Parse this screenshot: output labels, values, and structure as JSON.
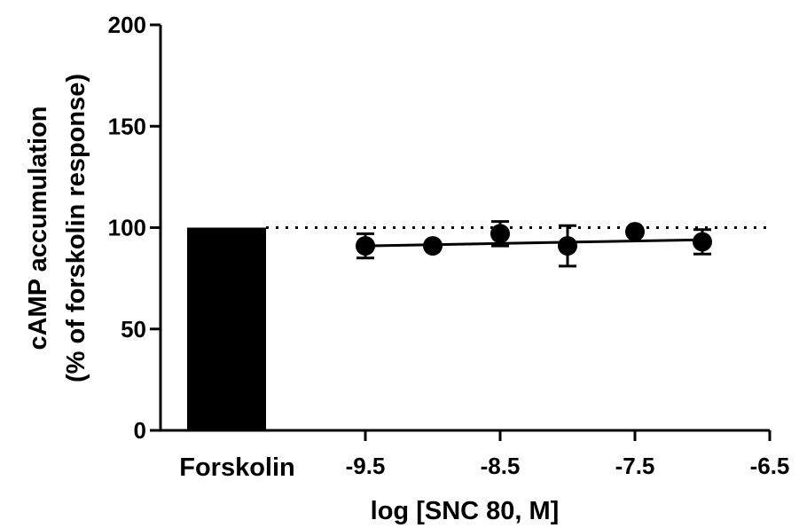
{
  "chart_data": {
    "type": "scatter",
    "xlabel": "log [SNC 80, M]",
    "ylabel_line1": "cAMP accumulation",
    "ylabel_line2": "(% of forskolin response)",
    "ylim": [
      0,
      200
    ],
    "y_ticks": [
      0,
      50,
      100,
      150,
      200
    ],
    "y_tick_labels": [
      "0",
      "50",
      "100",
      "150",
      "200"
    ],
    "xlim": [
      -10.0,
      -6.5
    ],
    "x_ticks": [
      -9.5,
      -8.5,
      -7.5,
      -6.5
    ],
    "x_tick_labels": [
      "-9.5",
      "-8.5",
      "-7.5",
      "-6.5"
    ],
    "control_bar": {
      "label": "Forskolin",
      "value": 100
    },
    "reference_line": 100,
    "series": [
      {
        "x": [
          -9.5,
          -9.0,
          -8.5,
          -8.0,
          -7.5,
          -7.0
        ],
        "y": [
          91,
          91,
          97,
          91,
          98,
          93
        ],
        "error": [
          6,
          0,
          6,
          10,
          0,
          6
        ]
      }
    ],
    "fit_line": {
      "x": [
        -9.5,
        -7.0
      ],
      "y": [
        91,
        94
      ]
    },
    "grid": false,
    "colors": {
      "marks": "#000000",
      "background": "#ffffff"
    }
  }
}
